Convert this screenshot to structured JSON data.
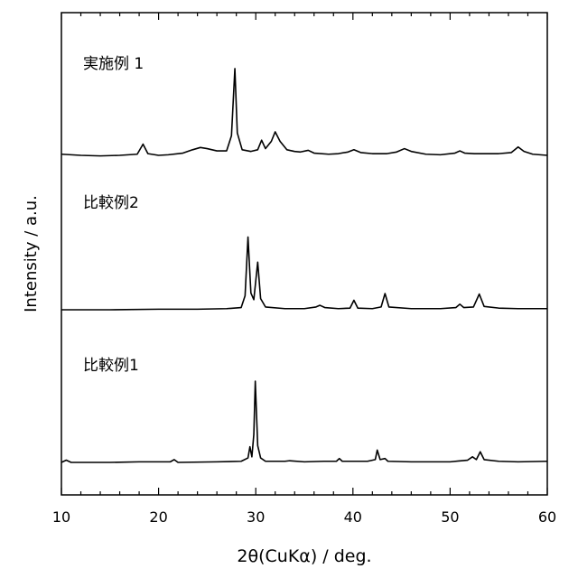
{
  "chart_data": {
    "type": "line",
    "xlabel": "2θ(CuKα) / deg.",
    "ylabel": "Intensity / a.u.",
    "xlim": [
      10,
      60
    ],
    "xticks": [
      "10",
      "20",
      "30",
      "40",
      "50",
      "60"
    ],
    "series": [
      {
        "name": "実施例 1",
        "points": [
          [
            10,
            0.02
          ],
          [
            12,
            0.0
          ],
          [
            14,
            -0.01
          ],
          [
            16,
            0.0
          ],
          [
            17.8,
            0.02
          ],
          [
            18.4,
            0.2
          ],
          [
            18.9,
            0.03
          ],
          [
            20,
            0.0
          ],
          [
            21,
            0.01
          ],
          [
            22.5,
            0.04
          ],
          [
            23.5,
            0.1
          ],
          [
            24.3,
            0.14
          ],
          [
            25.0,
            0.12
          ],
          [
            26.0,
            0.08
          ],
          [
            27.0,
            0.08
          ],
          [
            27.5,
            0.35
          ],
          [
            27.85,
            1.55
          ],
          [
            28.1,
            0.4
          ],
          [
            28.6,
            0.1
          ],
          [
            29.5,
            0.07
          ],
          [
            30.2,
            0.1
          ],
          [
            30.6,
            0.27
          ],
          [
            31.0,
            0.12
          ],
          [
            31.6,
            0.25
          ],
          [
            32.0,
            0.42
          ],
          [
            32.5,
            0.25
          ],
          [
            33.2,
            0.1
          ],
          [
            34.0,
            0.07
          ],
          [
            34.6,
            0.06
          ],
          [
            35.4,
            0.09
          ],
          [
            36.0,
            0.04
          ],
          [
            37.5,
            0.02
          ],
          [
            38.5,
            0.03
          ],
          [
            39.5,
            0.06
          ],
          [
            40.1,
            0.1
          ],
          [
            40.8,
            0.05
          ],
          [
            42.0,
            0.03
          ],
          [
            43.5,
            0.03
          ],
          [
            44.5,
            0.06
          ],
          [
            45.3,
            0.12
          ],
          [
            46.0,
            0.07
          ],
          [
            47.5,
            0.02
          ],
          [
            49.0,
            0.01
          ],
          [
            50.5,
            0.04
          ],
          [
            51.0,
            0.08
          ],
          [
            51.5,
            0.04
          ],
          [
            52.5,
            0.03
          ],
          [
            53.5,
            0.03
          ],
          [
            55.0,
            0.03
          ],
          [
            56.3,
            0.05
          ],
          [
            57.0,
            0.15
          ],
          [
            57.6,
            0.07
          ],
          [
            58.5,
            0.02
          ],
          [
            60,
            0.0
          ]
        ]
      },
      {
        "name": "比較例2",
        "points": [
          [
            10,
            0.0
          ],
          [
            15,
            0.0
          ],
          [
            20,
            0.01
          ],
          [
            24,
            0.01
          ],
          [
            27,
            0.02
          ],
          [
            28.5,
            0.04
          ],
          [
            28.9,
            0.25
          ],
          [
            29.2,
            1.3
          ],
          [
            29.5,
            0.3
          ],
          [
            29.8,
            0.18
          ],
          [
            30.2,
            0.85
          ],
          [
            30.5,
            0.2
          ],
          [
            31.0,
            0.05
          ],
          [
            33.0,
            0.02
          ],
          [
            35.0,
            0.02
          ],
          [
            36.2,
            0.05
          ],
          [
            36.6,
            0.08
          ],
          [
            37.1,
            0.04
          ],
          [
            38.5,
            0.02
          ],
          [
            39.7,
            0.03
          ],
          [
            40.1,
            0.17
          ],
          [
            40.5,
            0.03
          ],
          [
            42.0,
            0.02
          ],
          [
            42.9,
            0.05
          ],
          [
            43.3,
            0.29
          ],
          [
            43.7,
            0.05
          ],
          [
            46.0,
            0.02
          ],
          [
            49.0,
            0.02
          ],
          [
            50.6,
            0.04
          ],
          [
            51.0,
            0.1
          ],
          [
            51.4,
            0.04
          ],
          [
            52.4,
            0.05
          ],
          [
            53.0,
            0.28
          ],
          [
            53.5,
            0.06
          ],
          [
            55.0,
            0.03
          ],
          [
            57.0,
            0.02
          ],
          [
            60,
            0.02
          ]
        ]
      },
      {
        "name": "比較例1",
        "points": [
          [
            10,
            0.0
          ],
          [
            10.5,
            0.04
          ],
          [
            11,
            0.0
          ],
          [
            15,
            0.0
          ],
          [
            18,
            0.01
          ],
          [
            21.2,
            0.01
          ],
          [
            21.6,
            0.05
          ],
          [
            22.0,
            0.0
          ],
          [
            26,
            0.01
          ],
          [
            28.5,
            0.02
          ],
          [
            29.2,
            0.08
          ],
          [
            29.4,
            0.28
          ],
          [
            29.6,
            0.1
          ],
          [
            29.8,
            0.5
          ],
          [
            29.95,
            1.45
          ],
          [
            30.2,
            0.3
          ],
          [
            30.5,
            0.08
          ],
          [
            31.0,
            0.02
          ],
          [
            33.0,
            0.02
          ],
          [
            33.5,
            0.03
          ],
          [
            35,
            0.01
          ],
          [
            37,
            0.02
          ],
          [
            38.3,
            0.02
          ],
          [
            38.6,
            0.07
          ],
          [
            38.9,
            0.02
          ],
          [
            41.5,
            0.02
          ],
          [
            42.3,
            0.05
          ],
          [
            42.5,
            0.22
          ],
          [
            42.8,
            0.05
          ],
          [
            43.3,
            0.07
          ],
          [
            43.6,
            0.02
          ],
          [
            46,
            0.01
          ],
          [
            50,
            0.01
          ],
          [
            51.8,
            0.04
          ],
          [
            52.3,
            0.1
          ],
          [
            52.7,
            0.05
          ],
          [
            53.1,
            0.19
          ],
          [
            53.5,
            0.05
          ],
          [
            55,
            0.02
          ],
          [
            57,
            0.01
          ],
          [
            60,
            0.02
          ]
        ]
      }
    ]
  }
}
